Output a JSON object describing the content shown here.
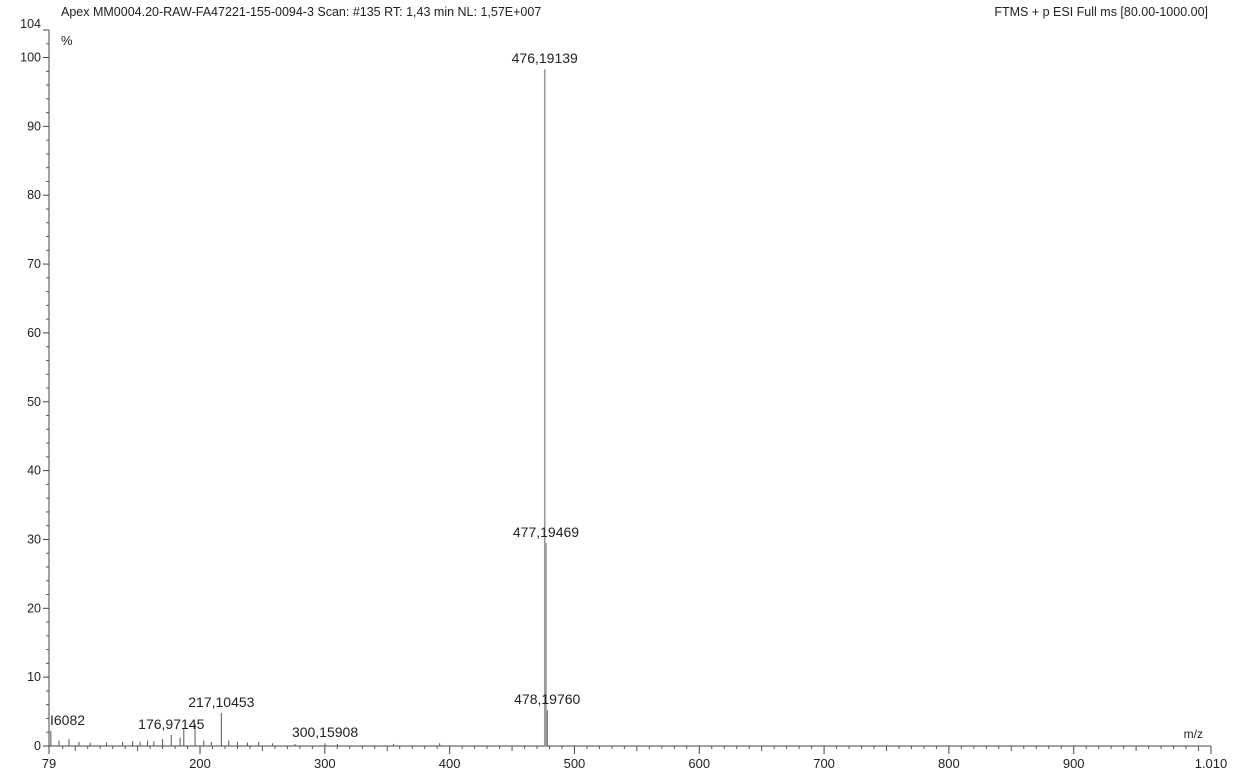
{
  "header": {
    "left": "Apex MM0004.20-RAW-FA47221-155-0094-3 Scan: #135  RT: 1,43 min NL: 1,57E+007",
    "right": "FTMS + p ESI Full ms [80.00-1000.00]"
  },
  "chart_data": {
    "type": "bar",
    "title": "",
    "ylabel": "%",
    "xlabel": "m/z",
    "xlim": [
      79,
      1010
    ],
    "ylim": [
      0,
      104
    ],
    "grid": false,
    "y_ticks": [
      {
        "v": 0,
        "label": "0"
      },
      {
        "v": 10,
        "label": "10"
      },
      {
        "v": 20,
        "label": "20"
      },
      {
        "v": 30,
        "label": "30"
      },
      {
        "v": 40,
        "label": "40"
      },
      {
        "v": 50,
        "label": "50"
      },
      {
        "v": 60,
        "label": "60"
      },
      {
        "v": 70,
        "label": "70"
      },
      {
        "v": 80,
        "label": "80"
      },
      {
        "v": 90,
        "label": "90"
      },
      {
        "v": 100,
        "label": "100"
      },
      {
        "v": 104,
        "label": "104"
      }
    ],
    "x_ticks": [
      {
        "v": 79,
        "label": "79"
      },
      {
        "v": 200,
        "label": "200"
      },
      {
        "v": 300,
        "label": "300"
      },
      {
        "v": 400,
        "label": "400"
      },
      {
        "v": 500,
        "label": "500"
      },
      {
        "v": 600,
        "label": "600"
      },
      {
        "v": 700,
        "label": "700"
      },
      {
        "v": 800,
        "label": "800"
      },
      {
        "v": 900,
        "label": "900"
      },
      {
        "v": 1010,
        "label": "1.010"
      }
    ],
    "peaks": [
      {
        "mz": 80.5,
        "intensity": 2.2,
        "label": "I6082"
      },
      {
        "mz": 87,
        "intensity": 0.8
      },
      {
        "mz": 95,
        "intensity": 1.0
      },
      {
        "mz": 103,
        "intensity": 0.6
      },
      {
        "mz": 112,
        "intensity": 0.5
      },
      {
        "mz": 125,
        "intensity": 0.5
      },
      {
        "mz": 138,
        "intensity": 0.6
      },
      {
        "mz": 146,
        "intensity": 0.7
      },
      {
        "mz": 152,
        "intensity": 0.6
      },
      {
        "mz": 158,
        "intensity": 0.8
      },
      {
        "mz": 163,
        "intensity": 0.7
      },
      {
        "mz": 170,
        "intensity": 1.0
      },
      {
        "mz": 176.97145,
        "intensity": 1.6,
        "label": "176,97145"
      },
      {
        "mz": 184,
        "intensity": 1.2
      },
      {
        "mz": 187,
        "intensity": 2.5
      },
      {
        "mz": 196,
        "intensity": 3.2
      },
      {
        "mz": 203,
        "intensity": 0.8
      },
      {
        "mz": 209,
        "intensity": 0.6
      },
      {
        "mz": 217.10453,
        "intensity": 4.8,
        "label": "217,10453"
      },
      {
        "mz": 223,
        "intensity": 0.8
      },
      {
        "mz": 230,
        "intensity": 0.6
      },
      {
        "mz": 238,
        "intensity": 0.5
      },
      {
        "mz": 247,
        "intensity": 0.6
      },
      {
        "mz": 258,
        "intensity": 0.4
      },
      {
        "mz": 276,
        "intensity": 0.3
      },
      {
        "mz": 300.15908,
        "intensity": 0.4,
        "label": "300,15908"
      },
      {
        "mz": 310,
        "intensity": 0.3
      },
      {
        "mz": 355,
        "intensity": 0.3
      },
      {
        "mz": 392,
        "intensity": 0.4
      },
      {
        "mz": 476.19139,
        "intensity": 98.3,
        "label": "476,19139"
      },
      {
        "mz": 477.19469,
        "intensity": 29.5,
        "label": "477,19469"
      },
      {
        "mz": 478.1976,
        "intensity": 5.2,
        "label": "478,19760"
      }
    ]
  }
}
